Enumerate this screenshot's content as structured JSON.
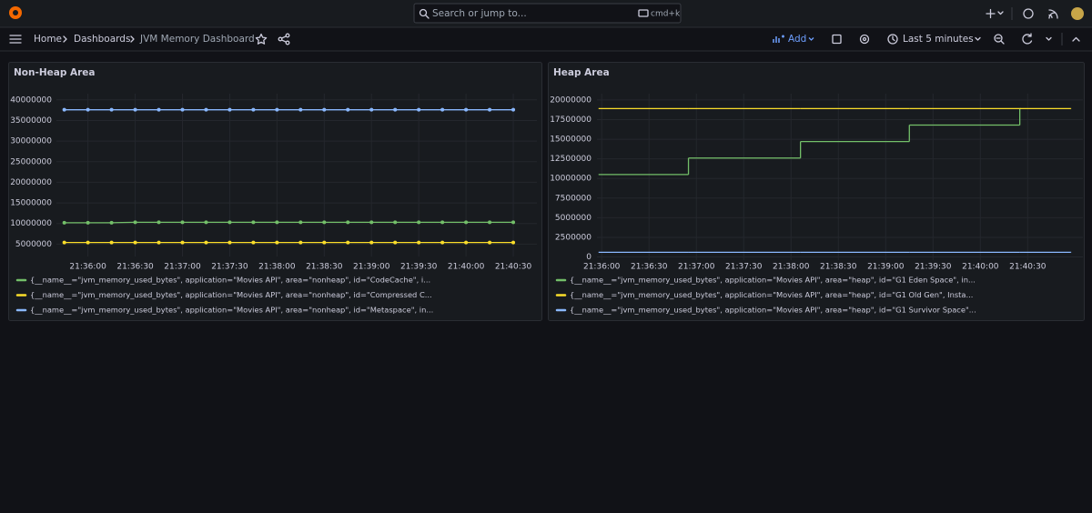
{
  "topbar": {
    "search": "Search or jump to...",
    "shortcut": "cmd+k"
  },
  "breadcrumb": [
    "Home",
    "Dashboards",
    "JVM Memory Dashboard"
  ],
  "toolbar": {
    "add": "Add",
    "time_range": "Last 5 minutes"
  },
  "chart_data": [
    {
      "type": "line",
      "title": "Non-Heap Area",
      "points": true,
      "grid": true,
      "x": [
        "21:35:45",
        "21:36:00",
        "21:36:15",
        "21:36:30",
        "21:36:45",
        "21:37:00",
        "21:37:15",
        "21:37:30",
        "21:37:45",
        "21:38:00",
        "21:38:15",
        "21:38:30",
        "21:38:45",
        "21:39:00",
        "21:39:15",
        "21:39:30",
        "21:39:45",
        "21:40:00",
        "21:40:15",
        "21:40:30"
      ],
      "xlim": [
        "21:35:40",
        "21:40:45"
      ],
      "xticks": [
        "21:36:00",
        "21:36:30",
        "21:37:00",
        "21:37:30",
        "21:38:00",
        "21:38:30",
        "21:39:00",
        "21:39:30",
        "21:40:00",
        "21:40:30"
      ],
      "ylim": [
        2000000,
        41500000
      ],
      "yticks": [
        5000000,
        10000000,
        15000000,
        20000000,
        25000000,
        30000000,
        35000000,
        40000000
      ],
      "series": [
        {
          "name": "{__name__=\"jvm_memory_used_bytes\", application=\"Movies API\", area=\"nonheap\", id=\"CodeCache\", i...",
          "color": "#73bf69",
          "values": [
            10200000,
            10200000,
            10200000,
            10300000,
            10300000,
            10300000,
            10300000,
            10300000,
            10300000,
            10300000,
            10300000,
            10300000,
            10300000,
            10300000,
            10300000,
            10300000,
            10300000,
            10300000,
            10300000,
            10300000
          ]
        },
        {
          "name": "{__name__=\"jvm_memory_used_bytes\", application=\"Movies API\", area=\"nonheap\", id=\"Compressed C...",
          "color": "#fade2a",
          "values": [
            5400000,
            5400000,
            5400000,
            5400000,
            5400000,
            5400000,
            5400000,
            5400000,
            5400000,
            5400000,
            5400000,
            5400000,
            5400000,
            5400000,
            5400000,
            5400000,
            5400000,
            5400000,
            5400000,
            5400000
          ]
        },
        {
          "name": "{__name__=\"jvm_memory_used_bytes\", application=\"Movies API\", area=\"nonheap\", id=\"Metaspace\", in...",
          "color": "#8ab8ff",
          "values": [
            37600000,
            37600000,
            37600000,
            37600000,
            37600000,
            37600000,
            37600000,
            37600000,
            37600000,
            37600000,
            37600000,
            37600000,
            37600000,
            37600000,
            37600000,
            37600000,
            37600000,
            37600000,
            37600000,
            37600000
          ]
        }
      ]
    },
    {
      "type": "line",
      "title": "Heap Area",
      "points": false,
      "grid": true,
      "line_interpolation": "stepAfter",
      "x": [
        "21:35:58",
        "21:36:55",
        "21:38:06",
        "21:39:15",
        "21:40:25",
        "21:40:57"
      ],
      "xlim": [
        "21:35:57",
        "21:41:05"
      ],
      "xticks": [
        "21:36:00",
        "21:36:30",
        "21:37:00",
        "21:37:30",
        "21:38:00",
        "21:38:30",
        "21:39:00",
        "21:39:30",
        "21:40:00",
        "21:40:30"
      ],
      "ylim": [
        -400000,
        20800000
      ],
      "yticks": [
        0,
        2500000,
        5000000,
        7500000,
        10000000,
        12500000,
        15000000,
        17500000,
        20000000
      ],
      "series": [
        {
          "name": "{__name__=\"jvm_memory_used_bytes\", application=\"Movies API\", area=\"heap\", id=\"G1 Eden Space\", in...",
          "color": "#73bf69",
          "values": [
            10500000,
            12600000,
            14700000,
            16800000,
            18900000,
            null
          ]
        },
        {
          "name": "{__name__=\"jvm_memory_used_bytes\", application=\"Movies API\", area=\"heap\", id=\"G1 Old Gen\", Insta...",
          "color": "#fade2a",
          "values": [
            18900000,
            18900000,
            18900000,
            18900000,
            18900000,
            18900000
          ]
        },
        {
          "name": "{__name__=\"jvm_memory_used_bytes\", application=\"Movies API\", area=\"heap\", id=\"G1 Survivor Space\"...",
          "color": "#8ab8ff",
          "values": [
            600000,
            600000,
            600000,
            600000,
            600000,
            600000
          ]
        }
      ]
    }
  ]
}
